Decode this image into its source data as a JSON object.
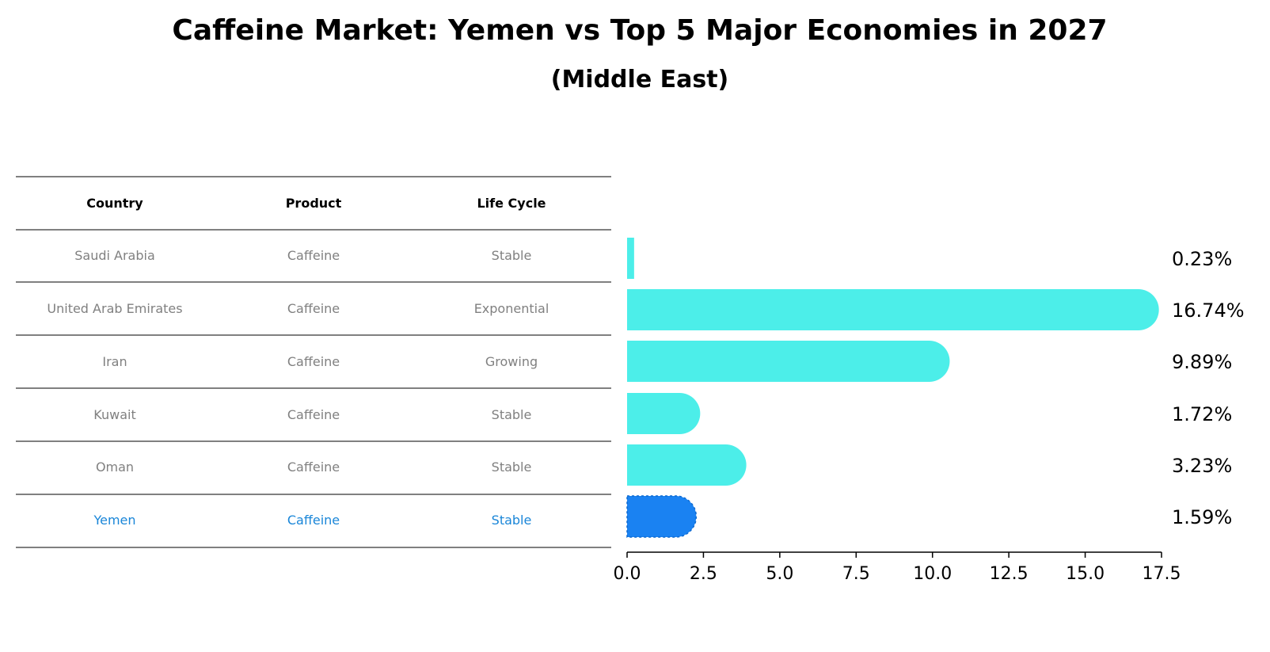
{
  "chart_data": {
    "type": "bar",
    "orientation": "horizontal",
    "title": "Caffeine Market: Yemen vs Top 5 Major Economies in 2027",
    "subtitle": "(Middle East)",
    "table": {
      "headers": [
        "Country",
        "Product",
        "Life Cycle"
      ],
      "rows": [
        [
          "Saudi Arabia",
          "Caffeine",
          "Stable"
        ],
        [
          "United Arab Emirates",
          "Caffeine",
          "Exponential"
        ],
        [
          "Iran",
          "Caffeine",
          "Growing"
        ],
        [
          "Kuwait",
          "Caffeine",
          "Stable"
        ],
        [
          "Oman",
          "Caffeine",
          "Stable"
        ],
        [
          "Yemen",
          "Caffeine",
          "Stable"
        ]
      ]
    },
    "categories": [
      "Saudi Arabia",
      "United Arab Emirates",
      "Iran",
      "Kuwait",
      "Oman",
      "Yemen"
    ],
    "values": [
      0.23,
      16.74,
      9.89,
      1.72,
      3.23,
      1.59
    ],
    "value_labels": [
      "0.23%",
      "16.74%",
      "9.89%",
      "1.72%",
      "3.23%",
      "1.59%"
    ],
    "highlight": "Yemen",
    "xlim": [
      0,
      17.5
    ],
    "xticks": [
      "0.0",
      "2.5",
      "5.0",
      "7.5",
      "10.0",
      "12.5",
      "15.0",
      "17.5"
    ],
    "colors": {
      "bar": "#4ceee9",
      "highlight": "#1a82f2",
      "highlight_text": "#1a86d8"
    },
    "grid": false
  }
}
